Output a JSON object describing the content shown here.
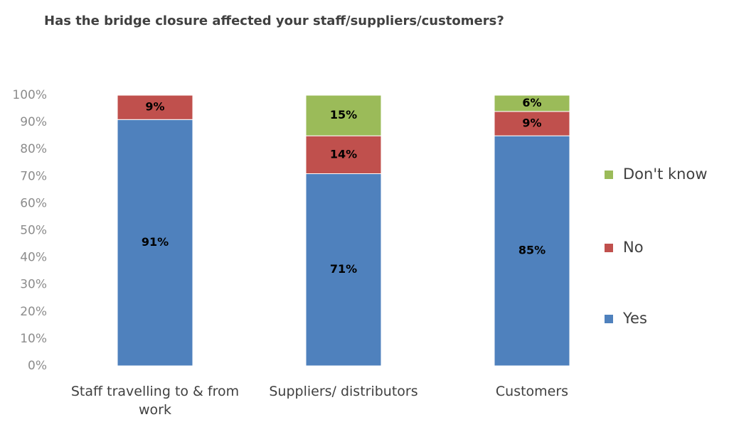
{
  "chart_data": {
    "type": "stacked-bar",
    "title": "Has the bridge closure affected your staff/suppliers/customers?",
    "categories": [
      "Staff travelling to & from work",
      "Suppliers/ distributors",
      "Customers"
    ],
    "series": [
      {
        "name": "Yes",
        "color": "#4f81bd",
        "values": [
          91,
          71,
          85
        ],
        "value_labels": [
          "91%",
          "71%",
          "85%"
        ]
      },
      {
        "name": "No",
        "color": "#c0504d",
        "values": [
          9,
          14,
          9
        ],
        "value_labels": [
          "9%",
          "14%",
          "9%"
        ]
      },
      {
        "name": "Don't know",
        "color": "#9bbb59",
        "values": [
          null,
          15,
          6
        ],
        "value_labels": [
          null,
          "15%",
          "6%"
        ]
      }
    ],
    "ylim": [
      0,
      100
    ],
    "yticks": [
      {
        "value": 0,
        "label": "0%"
      },
      {
        "value": 10,
        "label": "10%"
      },
      {
        "value": 20,
        "label": "20%"
      },
      {
        "value": 30,
        "label": "30%"
      },
      {
        "value": 40,
        "label": "40%"
      },
      {
        "value": 50,
        "label": "50%"
      },
      {
        "value": 60,
        "label": "60%"
      },
      {
        "value": 70,
        "label": "70%"
      },
      {
        "value": 80,
        "label": "80%"
      },
      {
        "value": 90,
        "label": "90%"
      },
      {
        "value": 100,
        "label": "100%"
      }
    ],
    "legend": "right"
  }
}
